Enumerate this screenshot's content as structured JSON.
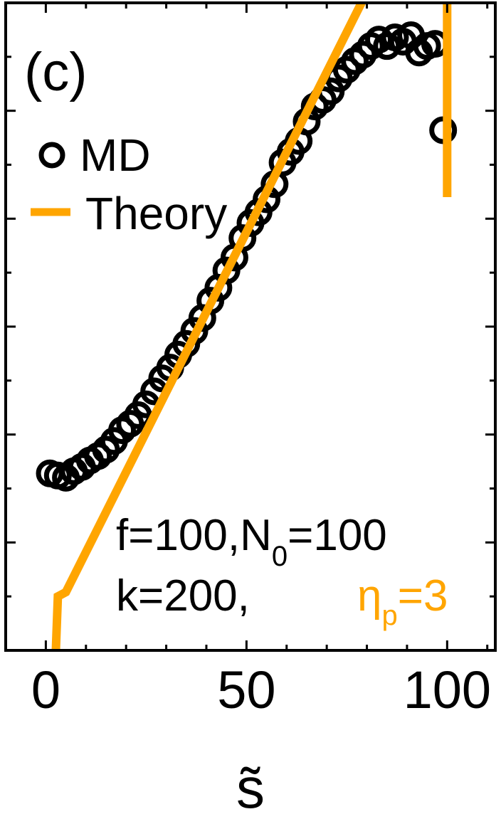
{
  "chart_data": {
    "type": "scatter",
    "panel_label": "(c)",
    "xlabel": "s̃",
    "ylabel": "",
    "xlim": [
      -10,
      112
    ],
    "ylim": [
      0,
      30
    ],
    "x_ticks": [
      0,
      50,
      100
    ],
    "x_tick_labels": [
      "0",
      "50",
      "100"
    ],
    "y_ticks": [
      2.5,
      5,
      7.5,
      10,
      12.5,
      15,
      17.5,
      20,
      22.5,
      25,
      27.5
    ],
    "grid": false,
    "legend": {
      "placement": "top-left",
      "entries": [
        {
          "label": "MD",
          "marker": "open-circle",
          "color": "#000000"
        },
        {
          "label": "Theory",
          "marker": "thick-line",
          "color": "#FFA500"
        }
      ]
    },
    "annotations": {
      "line1": "f=100,N",
      "line1_sub": "0",
      "line1_end": "=100",
      "line2": "k=200,",
      "eta_symbol": "η",
      "eta_sub": "p",
      "eta_value": "=3"
    },
    "series": [
      {
        "name": "MD",
        "color": "#000000",
        "x": [
          1,
          3,
          5,
          7,
          9,
          11,
          13,
          15,
          17,
          19,
          21,
          23,
          25,
          27,
          29,
          31,
          33,
          35,
          37,
          39,
          41,
          43,
          45,
          47,
          49,
          51,
          53,
          55,
          57,
          59,
          61,
          63,
          65,
          67,
          69,
          71,
          73,
          75,
          77,
          79,
          81,
          83,
          85,
          87,
          89,
          91,
          93,
          95,
          97,
          99
        ],
        "y": [
          8.2,
          8.1,
          8.0,
          8.3,
          8.5,
          8.8,
          9.0,
          9.3,
          9.7,
          10.2,
          10.5,
          10.9,
          11.4,
          12.0,
          12.6,
          13.1,
          13.7,
          14.2,
          14.8,
          15.4,
          16.2,
          16.8,
          17.6,
          18.2,
          19.1,
          19.8,
          20.3,
          20.9,
          21.6,
          22.6,
          23.1,
          23.6,
          24.5,
          25.2,
          25.5,
          25.9,
          26.5,
          26.9,
          27.3,
          27.6,
          28.0,
          28.3,
          28.0,
          28.4,
          28.2,
          28.5,
          27.7,
          28.0,
          28.1,
          24.1
        ]
      },
      {
        "name": "Theory",
        "color": "#FFA500",
        "x": [
          2.5,
          3,
          5,
          80,
          97,
          100,
          100
        ],
        "y": [
          0,
          2.5,
          2.7,
          30.5,
          30.5,
          31.1,
          21.0
        ]
      }
    ]
  }
}
